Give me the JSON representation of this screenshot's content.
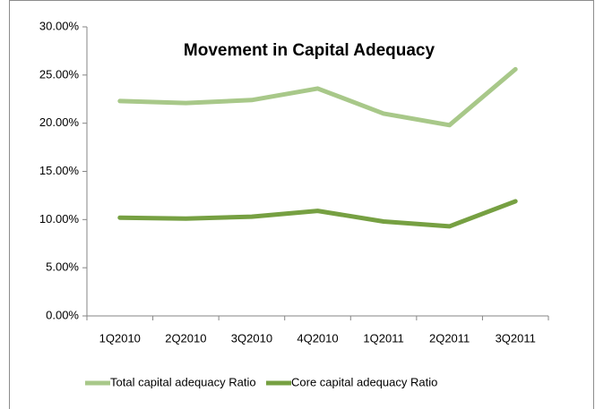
{
  "chart_data": {
    "type": "line",
    "title": "Movement in Capital Adequacy",
    "categories": [
      "1Q2010",
      "2Q2010",
      "3Q2010",
      "4Q2010",
      "1Q2011",
      "2Q2011",
      "3Q2011"
    ],
    "series": [
      {
        "name": "Total capital adequacy Ratio",
        "color": "#a8c889",
        "values": [
          22.3,
          22.1,
          22.4,
          23.6,
          21.0,
          19.8,
          25.6
        ]
      },
      {
        "name": "Core capital adequacy Ratio",
        "color": "#76a042",
        "values": [
          10.2,
          10.1,
          10.3,
          10.9,
          9.8,
          9.3,
          11.9
        ]
      }
    ],
    "ylim": [
      0,
      30
    ],
    "yticks": [
      {
        "value": 0,
        "label": "0.00%"
      },
      {
        "value": 5,
        "label": "5.00%"
      },
      {
        "value": 10,
        "label": "10.00%"
      },
      {
        "value": 15,
        "label": "15.00%"
      },
      {
        "value": 20,
        "label": "20.00%"
      },
      {
        "value": 25,
        "label": "25.00%"
      },
      {
        "value": 30,
        "label": "30.00%"
      }
    ],
    "grid": false,
    "legend": "bottom"
  }
}
